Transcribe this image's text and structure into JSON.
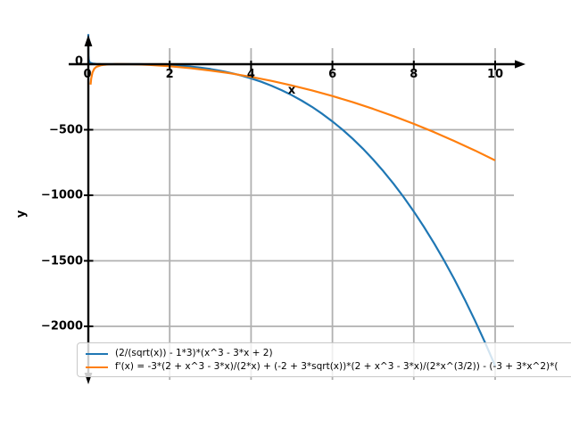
{
  "chart_data": {
    "type": "line",
    "title": "",
    "xlabel": "x",
    "ylabel": "y",
    "x_ticks": [
      0,
      2,
      4,
      6,
      8,
      10
    ],
    "y_ticks": [
      0,
      -500,
      -1000,
      -1500,
      -2000
    ],
    "xlim": [
      -0.48,
      10.75
    ],
    "ylim": [
      -2520,
      230
    ],
    "grid": true,
    "grid_color": "#b0b0b0",
    "axis_color": "#000000",
    "axis_style": "arrows-through-origin",
    "legend_position": "lower left",
    "series": [
      {
        "name": "(2/(sqrt(x)) - 1*3)*(x^3 - 3*x + 2)",
        "color": "#1f77b4",
        "points": [
          [
            0.0003,
            230
          ],
          [
            0.001,
            120.3
          ],
          [
            0.003,
            66.7
          ],
          [
            0.01,
            33.5
          ],
          [
            0.03,
            16.3
          ],
          [
            0.05,
            11.0
          ],
          [
            0.1,
            5.7
          ],
          [
            0.2,
            2.1
          ],
          [
            0.3,
            0.7
          ],
          [
            0.45,
            0.0
          ],
          [
            0.6,
            -0.2
          ],
          [
            0.8,
            -0.1
          ],
          [
            1.0,
            0.0
          ],
          [
            1.25,
            -0.2
          ],
          [
            1.5,
            -1.2
          ],
          [
            1.75,
            -3.1
          ],
          [
            2.0,
            -6.3
          ],
          [
            2.25,
            -11.1
          ],
          [
            2.5,
            -17.6
          ],
          [
            2.75,
            -26.1
          ],
          [
            3.0,
            -36.9
          ],
          [
            3.25,
            -50.3
          ],
          [
            3.5,
            -66.4
          ],
          [
            3.75,
            -85.5
          ],
          [
            4.0,
            -108.0
          ],
          [
            4.25,
            -134.0
          ],
          [
            4.5,
            -163.8
          ],
          [
            4.75,
            -197.7
          ],
          [
            5.0,
            -235.8
          ],
          [
            5.25,
            -278.6
          ],
          [
            5.5,
            -326.1
          ],
          [
            5.75,
            -378.7
          ],
          [
            6.0,
            -436.7
          ],
          [
            6.25,
            -500.3
          ],
          [
            6.5,
            -569.7
          ],
          [
            6.75,
            -645.2
          ],
          [
            7.0,
            -727.1
          ],
          [
            7.25,
            -815.6
          ],
          [
            7.5,
            -911.0
          ],
          [
            7.75,
            -1013.5
          ],
          [
            8.0,
            -1123.5
          ],
          [
            8.25,
            -1241.2
          ],
          [
            8.5,
            -1366.8
          ],
          [
            8.75,
            -1500.4
          ],
          [
            9.0,
            -1642.7
          ],
          [
            9.25,
            -1793.6
          ],
          [
            9.5,
            -1953.5
          ],
          [
            9.75,
            -2122.6
          ],
          [
            10.0,
            -2301.2
          ]
        ]
      },
      {
        "name": "f'(x) = -3*(2 + x^3 - 3*x)/(2*x) + (-2 + 3*sqrt(x))*(2 + x^3 - 3*x)/(2*x^(3/2)) - (-3 + 3*x^2)*(",
        "color": "#ff7f0e",
        "points": [
          [
            0.055,
            -156.0
          ],
          [
            0.07,
            -110.3
          ],
          [
            0.1,
            -63.7
          ],
          [
            0.15,
            -33.1
          ],
          [
            0.2,
            -20.0
          ],
          [
            0.3,
            -8.6
          ],
          [
            0.4,
            -3.8
          ],
          [
            0.5,
            -1.4
          ],
          [
            0.7,
            0.5
          ],
          [
            1.0,
            0.0
          ],
          [
            1.25,
            -2.2
          ],
          [
            1.5,
            -5.6
          ],
          [
            1.75,
            -10.1
          ],
          [
            2.0,
            -15.7
          ],
          [
            2.5,
            -29.9
          ],
          [
            3.0,
            -48.1
          ],
          [
            3.5,
            -70.4
          ],
          [
            4.0,
            -96.8
          ],
          [
            4.5,
            -127.1
          ],
          [
            5.0,
            -161.6
          ],
          [
            5.5,
            -200.2
          ],
          [
            6.0,
            -242.9
          ],
          [
            6.5,
            -289.7
          ],
          [
            7.0,
            -340.7
          ],
          [
            7.5,
            -395.8
          ],
          [
            8.0,
            -455.0
          ],
          [
            8.5,
            -518.4
          ],
          [
            9.0,
            -586.1
          ],
          [
            9.5,
            -657.9
          ],
          [
            10.0,
            -733.9
          ]
        ]
      }
    ]
  }
}
